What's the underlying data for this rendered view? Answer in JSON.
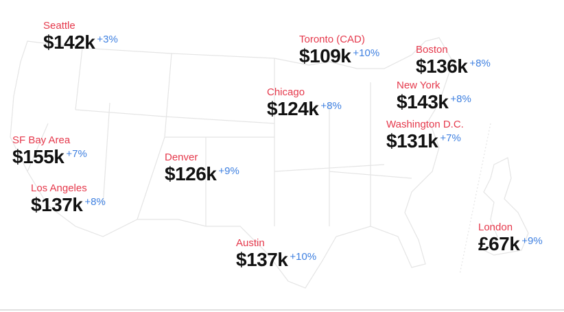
{
  "cities": [
    {
      "name": "Seattle",
      "salary": "$142k",
      "change": "+3%"
    },
    {
      "name": "Toronto (CAD)",
      "salary": "$109k",
      "change": "+10%"
    },
    {
      "name": "Boston",
      "salary": "$136k",
      "change": "+8%"
    },
    {
      "name": "Chicago",
      "salary": "$124k",
      "change": "+8%"
    },
    {
      "name": "New York",
      "salary": "$143k",
      "change": "+8%"
    },
    {
      "name": "Washington D.C.",
      "salary": "$131k",
      "change": "+7%"
    },
    {
      "name": "SF Bay Area",
      "salary": "$155k",
      "change": "+7%"
    },
    {
      "name": "Denver",
      "salary": "$126k",
      "change": "+9%"
    },
    {
      "name": "Los Angeles",
      "salary": "$137k",
      "change": "+8%"
    },
    {
      "name": "Austin",
      "salary": "$137k",
      "change": "+10%"
    },
    {
      "name": "London",
      "salary": "£67k",
      "change": "+9%"
    }
  ]
}
